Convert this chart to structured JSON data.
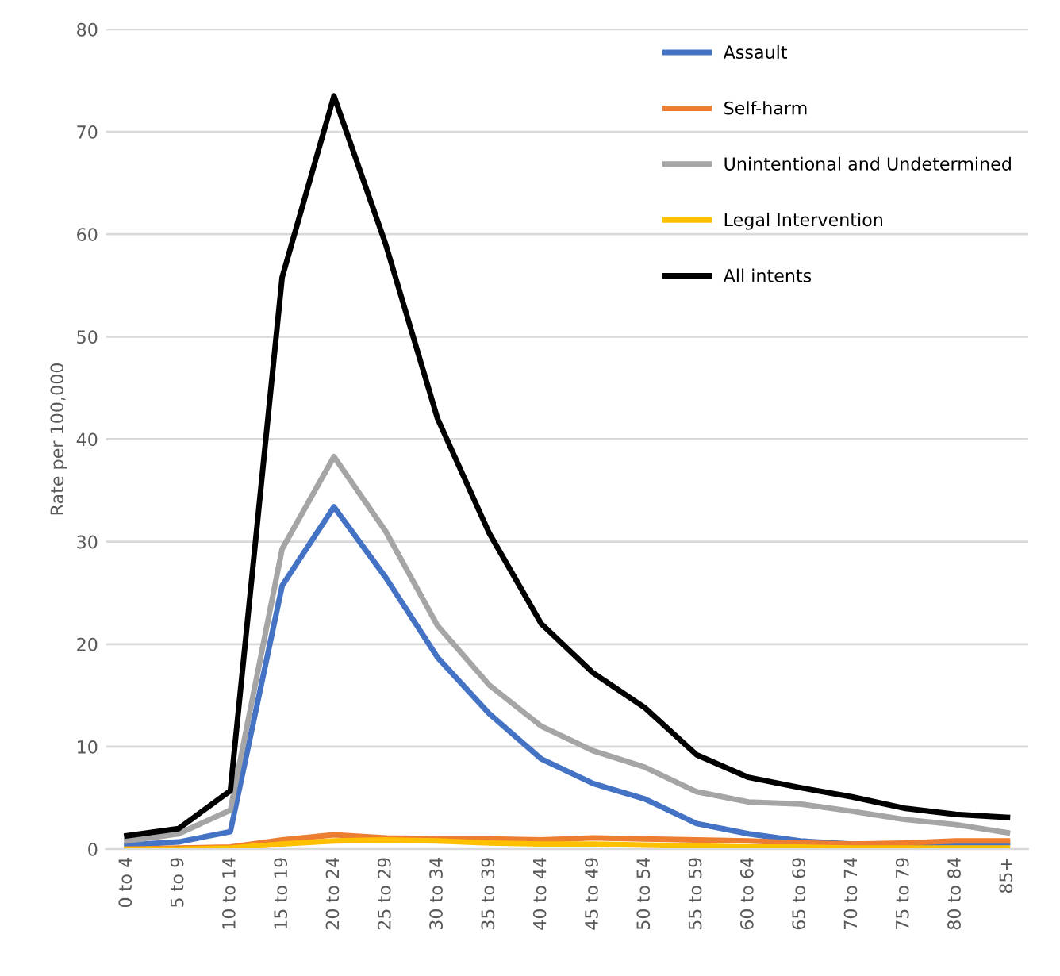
{
  "chart_data": {
    "type": "line",
    "ylabel": "Rate per 100,000",
    "categories": [
      "0 to 4",
      "5 to 9",
      "10 to 14",
      "15 to 19",
      "20 to 24",
      "25 to 29",
      "30 to 34",
      "35 to 39",
      "40 to 44",
      "45 to 49",
      "50 to 54",
      "55 to 59",
      "60 to 64",
      "65 to 69",
      "70 to 74",
      "75 to 79",
      "80 to 84",
      "85+"
    ],
    "series": [
      {
        "name": "Assault",
        "color": "#4472c4",
        "values": [
          0.4,
          0.7,
          1.7,
          25.7,
          33.4,
          26.5,
          18.7,
          13.2,
          8.8,
          6.4,
          4.9,
          2.5,
          1.5,
          0.8,
          0.5,
          0.4,
          0.3,
          0.6
        ]
      },
      {
        "name": "Self-harm",
        "color": "#ed7d31",
        "values": [
          0.0,
          0.1,
          0.2,
          0.9,
          1.4,
          1.1,
          1.0,
          1.0,
          0.9,
          1.1,
          1.0,
          0.9,
          0.8,
          0.6,
          0.5,
          0.6,
          0.8,
          0.8
        ]
      },
      {
        "name": "Unintentional and Undetermined",
        "color": "#a5a5a5",
        "values": [
          0.8,
          1.5,
          3.8,
          29.3,
          38.3,
          31.0,
          21.8,
          16.0,
          12.0,
          9.6,
          8.0,
          5.6,
          4.6,
          4.4,
          3.7,
          2.9,
          2.4,
          1.6
        ]
      },
      {
        "name": "Legal Intervention",
        "color": "#ffc000",
        "values": [
          0.0,
          0.0,
          0.1,
          0.5,
          0.8,
          0.9,
          0.8,
          0.6,
          0.5,
          0.5,
          0.4,
          0.3,
          0.2,
          0.2,
          0.1,
          0.1,
          0.1,
          0.1
        ]
      },
      {
        "name": "All intents",
        "color": "#000000",
        "values": [
          1.3,
          2.0,
          5.7,
          55.8,
          73.5,
          59.0,
          42.0,
          30.8,
          22.0,
          17.2,
          13.8,
          9.2,
          7.0,
          6.0,
          5.1,
          4.0,
          3.4,
          3.1
        ]
      }
    ],
    "ylim": [
      0,
      80
    ],
    "yticks": [
      0,
      10,
      20,
      30,
      40,
      50,
      60,
      70,
      80
    ],
    "grid": "y",
    "legend": "top right",
    "marker": "none",
    "line_style": "solid"
  }
}
